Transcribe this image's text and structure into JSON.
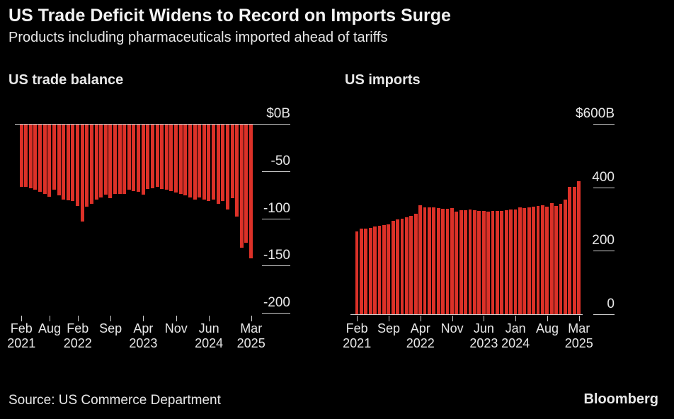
{
  "title": "US Trade Deficit Widens to Record on Imports Surge",
  "subtitle": "Products including pharmaceuticals imported ahead of tariffs",
  "source": "Source: US Commerce Department",
  "brand": "Bloomberg",
  "chart_data": [
    {
      "type": "bar",
      "title": "US trade balance",
      "color": "#dc3128",
      "categories": [
        "Feb 2021",
        null,
        null,
        null,
        null,
        null,
        "Aug",
        null,
        null,
        null,
        null,
        null,
        "Feb 2022",
        null,
        null,
        null,
        null,
        null,
        null,
        "Sep",
        null,
        null,
        null,
        null,
        null,
        null,
        "Apr 2023",
        null,
        null,
        null,
        null,
        null,
        null,
        "Nov",
        null,
        null,
        null,
        null,
        null,
        null,
        "Jun 2024",
        null,
        null,
        null,
        null,
        null,
        null,
        null,
        null,
        "Mar 2025"
      ],
      "values": [
        -67,
        -67,
        -68,
        -70,
        -72,
        -74,
        -77,
        -70,
        -76,
        -80,
        -81,
        -82,
        -87,
        -103,
        -88,
        -85,
        -80,
        -78,
        -75,
        -79,
        -74,
        -74,
        -74,
        -70,
        -71,
        -72,
        -75,
        -69,
        -68,
        -67,
        -69,
        -70,
        -71,
        -73,
        -74,
        -76,
        -78,
        -80,
        -78,
        -80,
        -82,
        -80,
        -85,
        -82,
        -91,
        -79,
        -98,
        -131,
        -126,
        -142
      ],
      "ylim": [
        -200,
        0
      ],
      "yticks": [
        {
          "value": 0,
          "label": "$0B"
        },
        -50,
        -100,
        -150,
        -200
      ]
    },
    {
      "type": "bar",
      "title": "US imports",
      "color": "#dc3128",
      "categories": [
        "Feb 2021",
        null,
        null,
        null,
        null,
        null,
        null,
        "Sep",
        null,
        null,
        null,
        null,
        null,
        null,
        "Apr 2022",
        null,
        null,
        null,
        null,
        null,
        null,
        "Nov",
        null,
        null,
        null,
        null,
        null,
        null,
        "Jun 2023",
        null,
        null,
        null,
        null,
        null,
        null,
        "Jan 2024",
        null,
        null,
        null,
        null,
        null,
        null,
        "Aug",
        null,
        null,
        null,
        null,
        null,
        null,
        "Mar 2025"
      ],
      "values": [
        261,
        270,
        271,
        273,
        276,
        278,
        280,
        283,
        295,
        300,
        302,
        305,
        310,
        317,
        343,
        336,
        336,
        337,
        335,
        333,
        333,
        334,
        324,
        328,
        327,
        330,
        328,
        326,
        325,
        324,
        325,
        326,
        325,
        327,
        329,
        331,
        336,
        334,
        337,
        339,
        341,
        343,
        340,
        350,
        342,
        348,
        362,
        401,
        401,
        419
      ],
      "ylim": [
        0,
        600
      ],
      "yticks": [
        {
          "value": 0,
          "label": "0"
        },
        200,
        400,
        {
          "value": 600,
          "label": "$600B"
        }
      ]
    }
  ]
}
